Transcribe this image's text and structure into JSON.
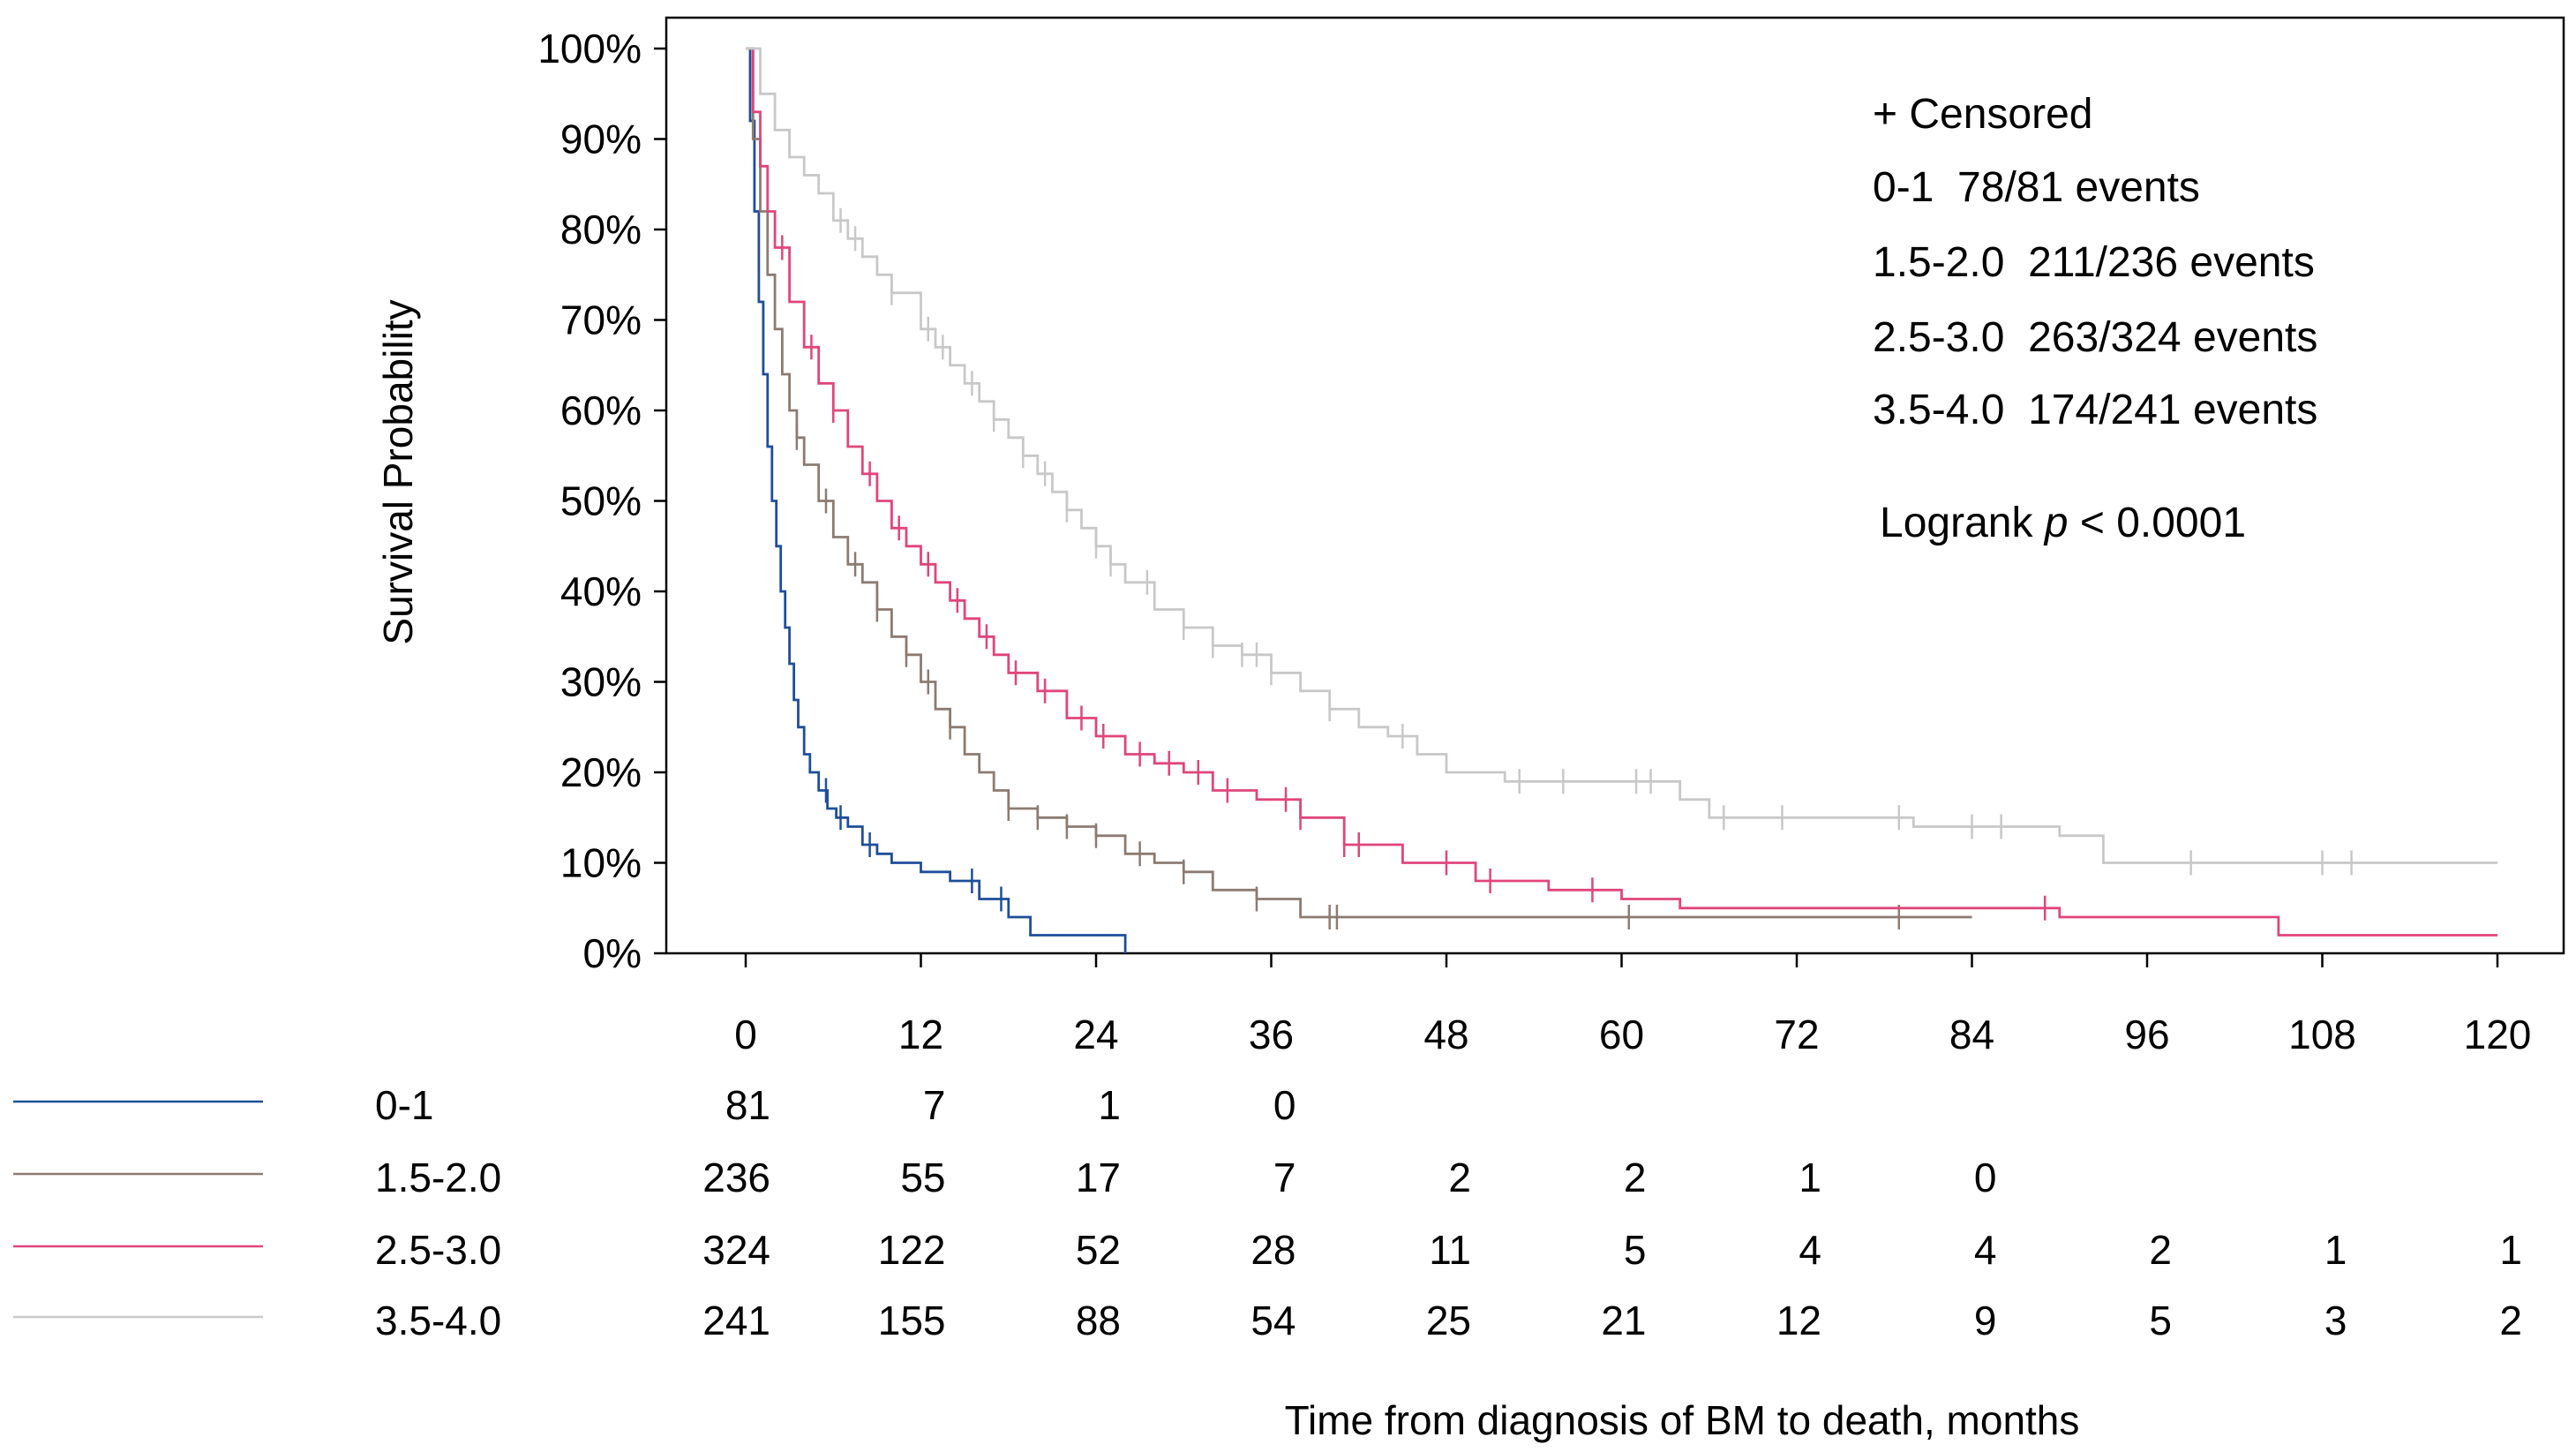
{
  "chart_data": {
    "type": "line",
    "subtype": "kaplan-meier",
    "title": "",
    "xlabel": "Time from diagnosis of BM to death, months",
    "ylabel": "Survival Probability",
    "xlim": [
      0,
      120
    ],
    "ylim": [
      0,
      100
    ],
    "x_ticks": [
      0,
      12,
      24,
      36,
      48,
      60,
      72,
      84,
      96,
      108,
      120
    ],
    "x_tick_labels": [
      "0",
      "12",
      "24",
      "36",
      "48",
      "60",
      "72",
      "84",
      "96",
      "108",
      "120"
    ],
    "y_ticks": [
      0,
      10,
      20,
      30,
      40,
      50,
      60,
      70,
      80,
      90,
      100
    ],
    "y_tick_labels": [
      "0%",
      "10%",
      "20%",
      "30%",
      "40%",
      "50%",
      "60%",
      "70%",
      "80%",
      "90%",
      "100%"
    ],
    "legend": {
      "placement": "top-right",
      "censored_label": "+ Censored",
      "entries": [
        "0-1  78/81 events",
        "1.5-2.0  211/236 events",
        "2.5-3.0  263/324 events",
        "3.5-4.0  174/241 events"
      ],
      "logrank_prefix": "Logrank ",
      "logrank_p": "p",
      "logrank_suffix": " < 0.0001"
    },
    "series": [
      {
        "name": "0-1",
        "color": "#1f4e99",
        "times": [
          0,
          0.3,
          0.6,
          0.9,
          1.2,
          1.5,
          1.8,
          2.1,
          2.4,
          2.7,
          3.0,
          3.3,
          3.6,
          4.0,
          4.4,
          5.0,
          5.6,
          6.2,
          7.0,
          8.0,
          9.0,
          10.0,
          12.0,
          14.0,
          16.0,
          18.0,
          19.5,
          22.0,
          26.0
        ],
        "survival": [
          100,
          92,
          82,
          72,
          64,
          56,
          50,
          45,
          40,
          36,
          32,
          28,
          25,
          22,
          20,
          18,
          16,
          15,
          14,
          12,
          11,
          10,
          9,
          8,
          6,
          4,
          2,
          2,
          0
        ],
        "censor_times": [
          5.5,
          6.5,
          8.5,
          15.5,
          17.5
        ],
        "at_risk": [
          81,
          7,
          1,
          0
        ]
      },
      {
        "name": "1.5-2.0",
        "color": "#8c7b72",
        "times": [
          0,
          0.5,
          1,
          1.5,
          2,
          2.5,
          3,
          3.5,
          4,
          5,
          6,
          7,
          8,
          9,
          10,
          11,
          12,
          13,
          14,
          15,
          16,
          17,
          18,
          20,
          22,
          24,
          26,
          28,
          30,
          32,
          35,
          38,
          40,
          84
        ],
        "survival": [
          100,
          90,
          82,
          75,
          69,
          64,
          60,
          57,
          54,
          50,
          46,
          43,
          41,
          38,
          35,
          33,
          30,
          27,
          25,
          22,
          20,
          18,
          16,
          15,
          14,
          13,
          11,
          10,
          9,
          7,
          6,
          4,
          4,
          4
        ],
        "censor_times": [
          3.5,
          5.5,
          7.5,
          9,
          11,
          12.5,
          14,
          18,
          20,
          22,
          24,
          27,
          30,
          35,
          40,
          40.5,
          60.5,
          79
        ],
        "at_risk": [
          236,
          55,
          17,
          7,
          2,
          2,
          1,
          0
        ]
      },
      {
        "name": "2.5-3.0",
        "color": "#e0457b",
        "times": [
          0,
          0.5,
          1,
          1.5,
          2,
          3,
          4,
          5,
          6,
          7,
          8,
          9,
          10,
          11,
          12,
          13,
          14,
          15,
          16,
          17,
          18,
          20,
          22,
          24,
          26,
          28,
          30,
          32,
          35,
          38,
          41,
          45,
          50,
          55,
          60,
          64,
          80,
          90,
          105,
          120
        ],
        "survival": [
          100,
          93,
          87,
          82,
          78,
          72,
          67,
          63,
          60,
          56,
          53,
          50,
          47,
          45,
          43,
          41,
          39,
          37,
          35,
          33,
          31,
          29,
          26,
          24,
          22,
          21,
          20,
          18,
          17,
          15,
          12,
          10,
          8,
          7,
          6,
          5,
          5,
          4,
          2,
          2
        ],
        "censor_times": [
          2.5,
          4.5,
          6,
          8.5,
          10.5,
          12.5,
          14.5,
          16.5,
          18.5,
          20.5,
          23,
          24.5,
          27,
          29,
          31,
          33,
          37,
          38,
          41,
          42,
          48,
          51,
          58,
          89
        ],
        "at_risk": [
          324,
          122,
          52,
          28,
          11,
          5,
          4,
          4,
          2,
          1,
          1
        ]
      },
      {
        "name": "3.5-4.0",
        "color": "#c8c8c8",
        "times": [
          0,
          1,
          2,
          3,
          4,
          5,
          6,
          7,
          8,
          9,
          10,
          12,
          13,
          14,
          15,
          16,
          17,
          18,
          19,
          20,
          21,
          22,
          23,
          24,
          25,
          26,
          28,
          30,
          32,
          34,
          36,
          38,
          40,
          42,
          44,
          46,
          48,
          52,
          58,
          64,
          66,
          72,
          80,
          84,
          90,
          93,
          120
        ],
        "survival": [
          100,
          95,
          91,
          88,
          86,
          84,
          81,
          79,
          77,
          75,
          73,
          69,
          67,
          65,
          63,
          61,
          59,
          57,
          55,
          53,
          51,
          49,
          47,
          45,
          43,
          41,
          38,
          36,
          34,
          33,
          31,
          29,
          27,
          25,
          24,
          22,
          20,
          19,
          19,
          17,
          15,
          15,
          14,
          14,
          13,
          10,
          10
        ],
        "censor_times": [
          6.5,
          7.5,
          10,
          12.5,
          13.5,
          15.5,
          17,
          19,
          20.5,
          22,
          24,
          25,
          27.5,
          30,
          32,
          34,
          35,
          36,
          40,
          45,
          53,
          56,
          61,
          62,
          67,
          71,
          79,
          84,
          86,
          99,
          108,
          110
        ],
        "at_risk": [
          241,
          155,
          88,
          54,
          25,
          21,
          12,
          9,
          5,
          3,
          2
        ]
      }
    ],
    "risk_table": {
      "times": [
        0,
        12,
        24,
        36,
        48,
        60,
        72,
        84,
        96,
        108,
        120
      ]
    }
  }
}
